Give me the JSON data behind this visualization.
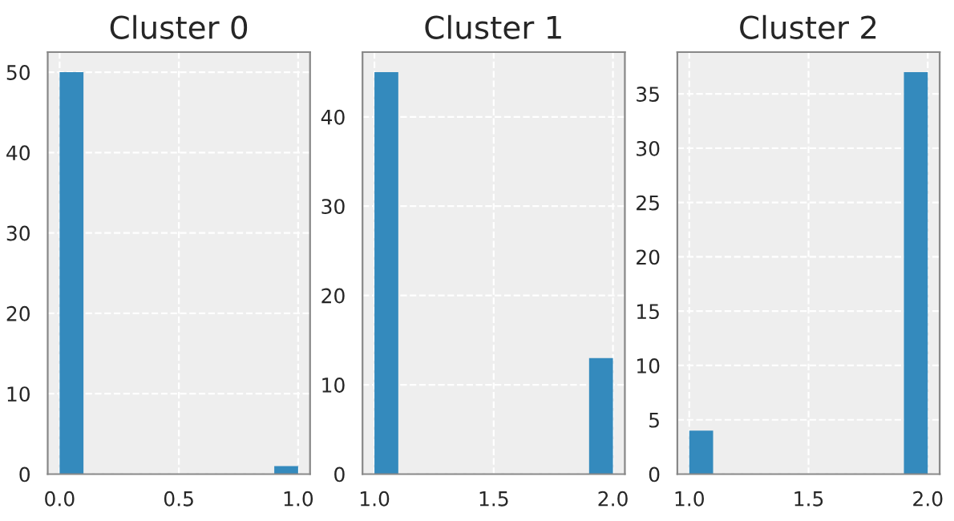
{
  "chart_data": [
    {
      "type": "histogram",
      "title": "Cluster 0",
      "bins": [
        0.0,
        0.1,
        0.2,
        0.3,
        0.4,
        0.5,
        0.6,
        0.7,
        0.8,
        0.9,
        1.0
      ],
      "values": [
        50,
        0,
        0,
        0,
        0,
        0,
        0,
        0,
        0,
        1
      ],
      "color": "#348abd",
      "xlim": [
        -0.05,
        1.05
      ],
      "ylim": [
        0,
        52.5
      ],
      "xticks": [
        {
          "value": 0.0,
          "label": "0.0"
        },
        {
          "value": 0.5,
          "label": "0.5"
        },
        {
          "value": 1.0,
          "label": "1.0"
        }
      ],
      "yticks": [
        0,
        10,
        20,
        30,
        40,
        50
      ],
      "grid": true
    },
    {
      "type": "histogram",
      "title": "Cluster 1",
      "bins": [
        1.0,
        1.1,
        1.2,
        1.3,
        1.4,
        1.5,
        1.6,
        1.7,
        1.8,
        1.9,
        2.0
      ],
      "values": [
        45,
        0,
        0,
        0,
        0,
        0,
        0,
        0,
        0,
        13
      ],
      "color": "#348abd",
      "xlim": [
        0.95,
        2.05
      ],
      "ylim": [
        0,
        47.25
      ],
      "xticks": [
        {
          "value": 1.0,
          "label": "1.0"
        },
        {
          "value": 1.5,
          "label": "1.5"
        },
        {
          "value": 2.0,
          "label": "2.0"
        }
      ],
      "yticks": [
        0,
        10,
        20,
        30,
        40
      ],
      "grid": true
    },
    {
      "type": "histogram",
      "title": "Cluster 2",
      "bins": [
        1.0,
        1.1,
        1.2,
        1.3,
        1.4,
        1.5,
        1.6,
        1.7,
        1.8,
        1.9,
        2.0
      ],
      "values": [
        4,
        0,
        0,
        0,
        0,
        0,
        0,
        0,
        0,
        37
      ],
      "color": "#348abd",
      "xlim": [
        0.95,
        2.05
      ],
      "ylim": [
        0,
        38.85
      ],
      "xticks": [
        {
          "value": 1.0,
          "label": "1.0"
        },
        {
          "value": 1.5,
          "label": "1.5"
        },
        {
          "value": 2.0,
          "label": "2.0"
        }
      ],
      "yticks": [
        0,
        5,
        10,
        15,
        20,
        25,
        30,
        35
      ],
      "grid": true
    }
  ]
}
